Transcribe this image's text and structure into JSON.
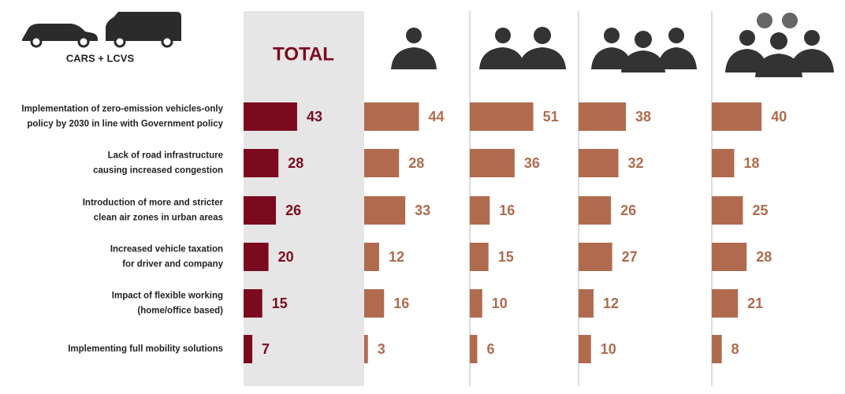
{
  "chart_data": {
    "type": "bar",
    "subtitle": "CARS + LCVS",
    "categories": [
      [
        "Implementation of zero-emission vehicles-only",
        "policy by 2030 in line with Government policy"
      ],
      [
        "Lack of road infrastructure",
        "causing increased congestion"
      ],
      [
        "Introduction of more and stricter",
        "clean air zones in urban areas"
      ],
      [
        "Increased vehicle taxation",
        "for driver and company"
      ],
      [
        "Impact of flexible working",
        "(home/office based)"
      ],
      [
        "Implementing full mobility solutions"
      ]
    ],
    "series": [
      {
        "name": "TOTAL",
        "color": "#7b0a1e",
        "values": [
          43,
          28,
          26,
          20,
          15,
          7
        ]
      },
      {
        "color": "#b06b4e",
        "values": [
          44,
          28,
          33,
          12,
          16,
          3
        ]
      },
      {
        "color": "#b06b4e",
        "values": [
          51,
          36,
          16,
          15,
          10,
          6
        ]
      },
      {
        "color": "#b06b4e",
        "values": [
          38,
          32,
          26,
          27,
          12,
          10
        ]
      },
      {
        "color": "#b06b4e",
        "values": [
          40,
          18,
          25,
          28,
          21,
          8
        ]
      }
    ]
  }
}
